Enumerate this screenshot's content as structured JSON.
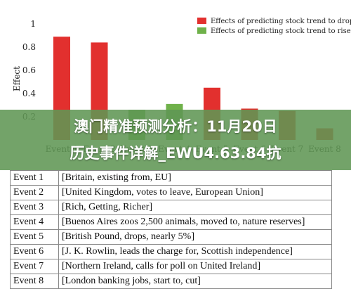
{
  "chart_data": {
    "type": "bar",
    "ylabel": "Effect",
    "ylim": [
      0,
      1
    ],
    "yticks": [
      "0.2",
      "0.4",
      "0.6",
      "0.8",
      "1"
    ],
    "categories": [
      "Event 1",
      "Event 2",
      "Event 3",
      "Event 4",
      "Event 5",
      "Event 6",
      "Event 7",
      "Event 8"
    ],
    "series": [
      {
        "name": "Effects of predicting stock trend to drop",
        "color": "#e2302e",
        "values": [
          0.89,
          0.84,
          null,
          null,
          0.45,
          null,
          null,
          null
        ]
      },
      {
        "name": "Effects of predicting stock trend to rise",
        "color": "#6fb14a",
        "values": [
          null,
          null,
          0.26,
          0.31,
          null,
          null,
          null,
          null
        ]
      }
    ],
    "partially_visible_bars": [
      {
        "category": "Event 6",
        "color": "#e2302e",
        "value": 0.27
      },
      {
        "category": "Event 7",
        "color": "#e2302e",
        "value": 0.25
      },
      {
        "category": "Event 8",
        "color": "#e2302e",
        "value": 0.1
      }
    ],
    "legend_position": "top-right",
    "grid": false
  },
  "banner": {
    "line1": "澳门精准预测分析：11月20日",
    "line2": "历史事件详解_EWU4.63.84抗"
  },
  "events_table": [
    {
      "event": "Event 1",
      "description": "[Britain, existing from, EU]"
    },
    {
      "event": "Event 2",
      "description": "[United Kingdom, votes to leave, European Union]"
    },
    {
      "event": "Event 3",
      "description": "[Rich, Getting, Richer]"
    },
    {
      "event": "Event 4",
      "description": "[Buenos Aires zoos 2,500 animals, moved to, nature reserves]"
    },
    {
      "event": "Event 5",
      "description": "[British Pound, drops, nearly 5%]"
    },
    {
      "event": "Event 6",
      "description": "[J. K. Rowlin, leads the charge for, Scottish independence]"
    },
    {
      "event": "Event 7",
      "description": "[Northern Ireland, calls for poll on United Ireland]"
    },
    {
      "event": "Event 8",
      "description": "[London banking jobs, start to, cut]"
    }
  ]
}
